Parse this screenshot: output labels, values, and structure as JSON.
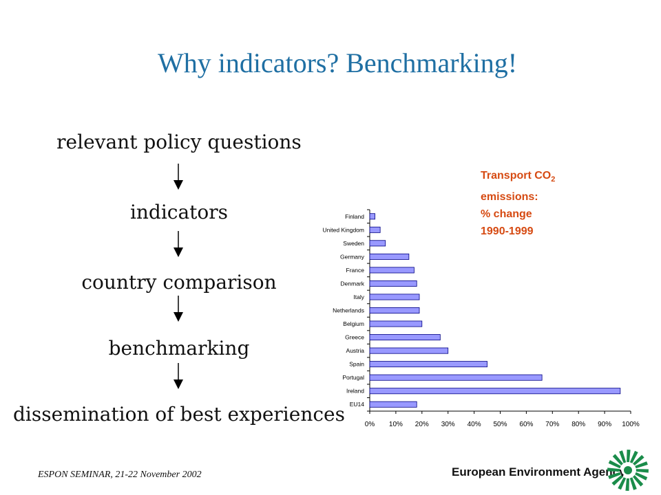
{
  "slide": {
    "title": "Why indicators? Benchmarking!",
    "flow_steps": [
      "relevant policy questions",
      "indicators",
      "country comparison",
      "benchmarking",
      "dissemination of best experiences"
    ],
    "footer": "ESPON SEMINAR, 21-22 November 2002",
    "agency_name": "European Environment Agency"
  },
  "chart_note": {
    "line1_main": "Transport CO",
    "line1_sub": "2",
    "line2": "emissions:",
    "line3": "% change",
    "line4": "1990-1999"
  },
  "chart_data": {
    "type": "bar",
    "orientation": "horizontal",
    "categories": [
      "Finland",
      "United Kingdom",
      "Sweden",
      "Germany",
      "France",
      "Denmark",
      "Italy",
      "Netherlands",
      "Belgium",
      "Greece",
      "Austria",
      "Spain",
      "Portugal",
      "Ireland",
      "EU14"
    ],
    "values": [
      2,
      4,
      6,
      15,
      17,
      18,
      19,
      19,
      20,
      27,
      30,
      45,
      66,
      96,
      18
    ],
    "xlim": [
      0,
      100
    ],
    "x_ticks": [
      "0%",
      "10%",
      "20%",
      "30%",
      "40%",
      "50%",
      "60%",
      "70%",
      "80%",
      "90%",
      "100%"
    ],
    "bar_color": "#9999ff",
    "bar_edge_color": "#000080",
    "grid": false
  },
  "colors": {
    "title": "#1f6fa3",
    "note": "#d64a12",
    "logo": "#1a8c4a"
  }
}
